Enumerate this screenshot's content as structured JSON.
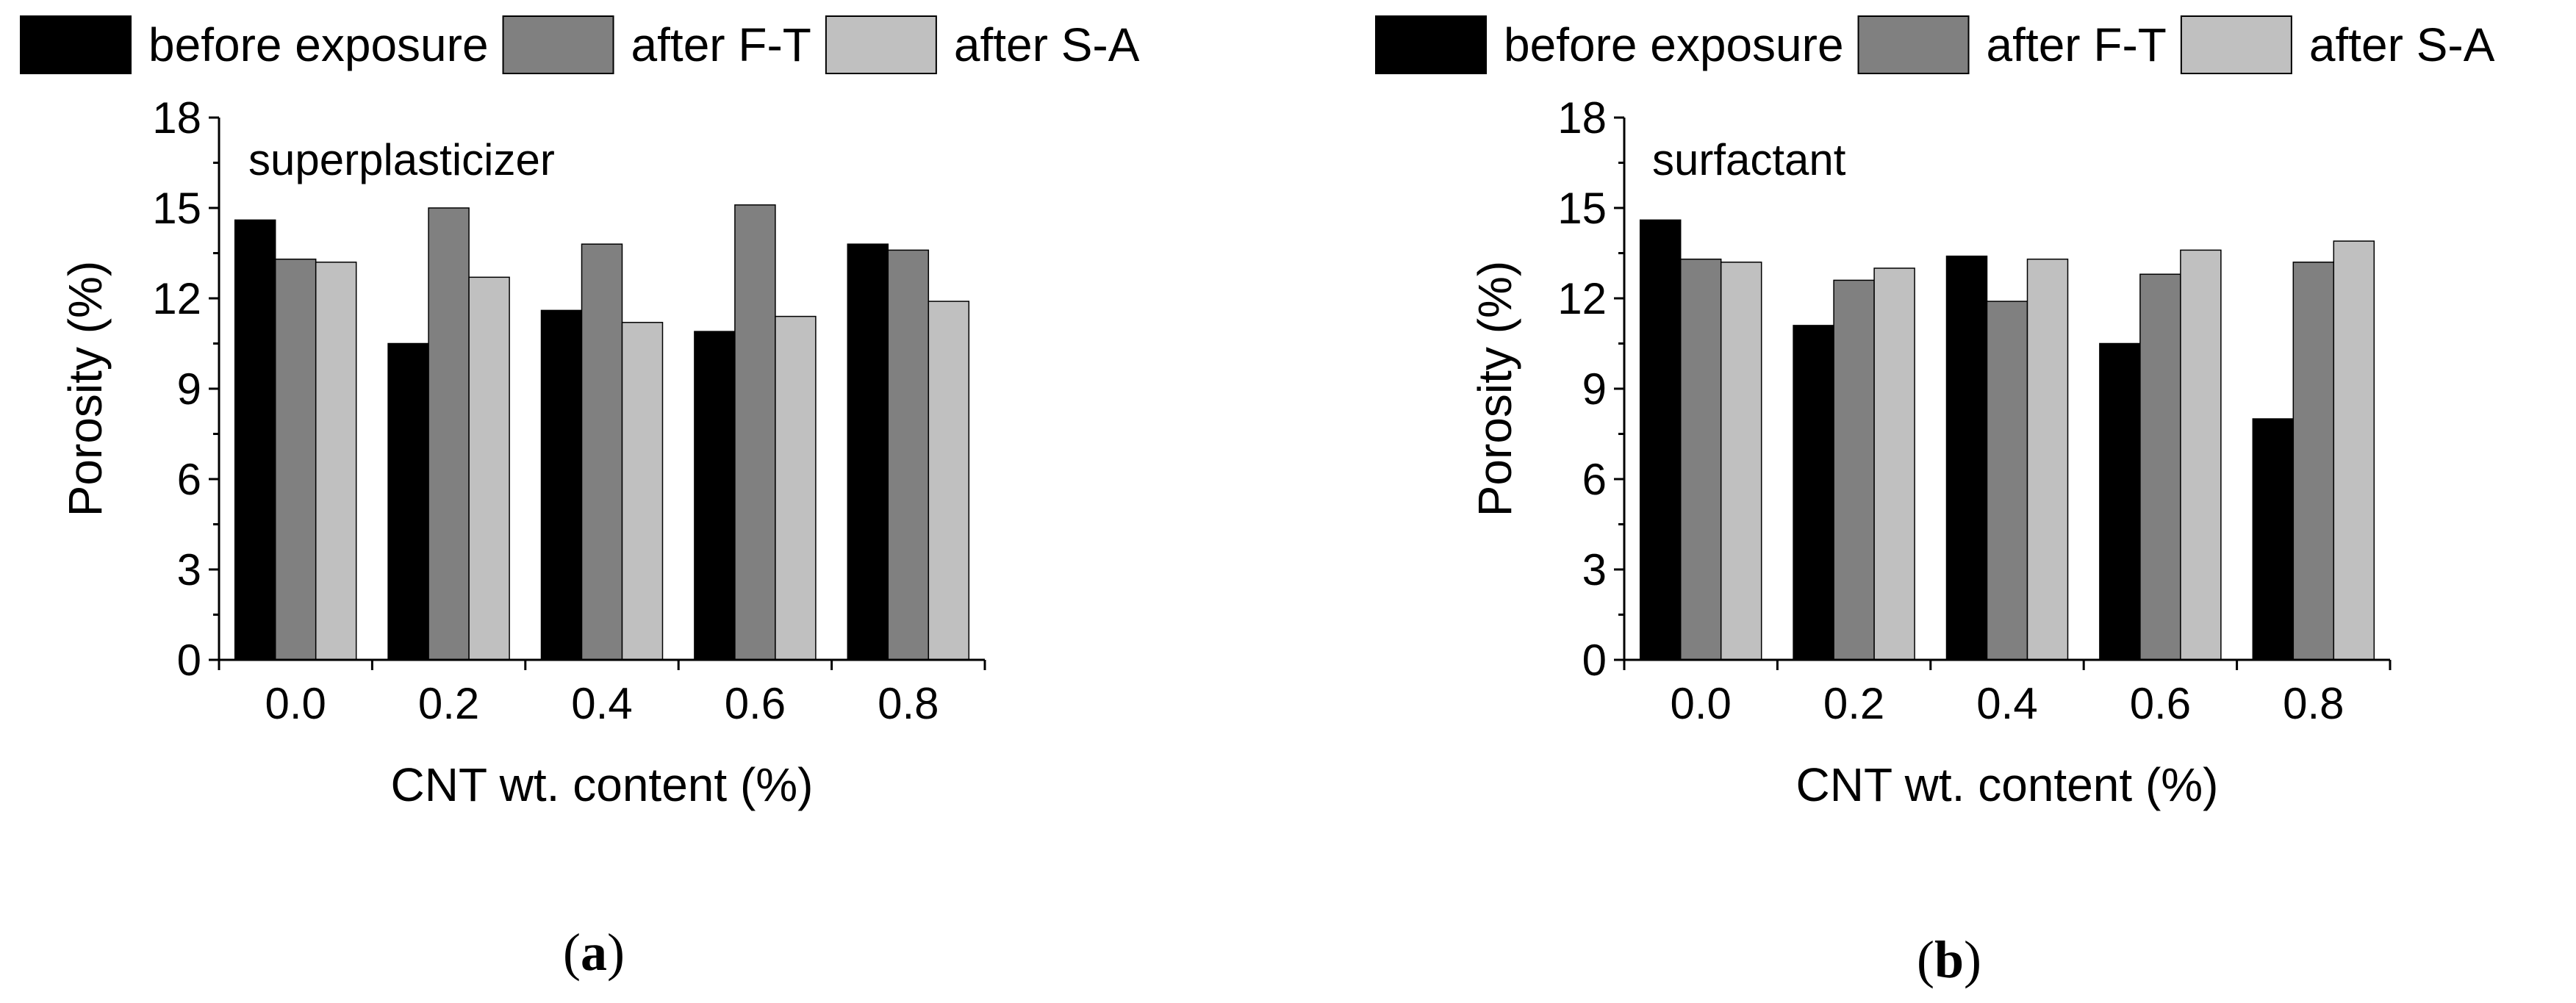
{
  "chart_data": [
    {
      "type": "bar",
      "panel_label": "a",
      "annotation": "superplasticizer",
      "xlabel": "CNT wt. content (%)",
      "ylabel": "Porosity (%)",
      "categories": [
        "0.0",
        "0.2",
        "0.4",
        "0.6",
        "0.8"
      ],
      "ylim": [
        0,
        18
      ],
      "yticks": [
        "0",
        "3",
        "6",
        "9",
        "12",
        "15",
        "18"
      ],
      "legend_position": "top",
      "grid": false,
      "series": [
        {
          "name": "before exposure",
          "color": "#000000",
          "values": [
            14.6,
            10.5,
            11.6,
            10.9,
            13.8
          ]
        },
        {
          "name": "after F-T",
          "color": "#808080",
          "values": [
            13.3,
            15.0,
            13.8,
            15.1,
            13.6
          ]
        },
        {
          "name": "after S-A",
          "color": "#c0c0c0",
          "values": [
            13.2,
            12.7,
            11.2,
            11.4,
            11.9
          ]
        }
      ]
    },
    {
      "type": "bar",
      "panel_label": "b",
      "annotation": "surfactant",
      "xlabel": "CNT wt. content (%)",
      "ylabel": "Porosity (%)",
      "categories": [
        "0.0",
        "0.2",
        "0.4",
        "0.6",
        "0.8"
      ],
      "ylim": [
        0,
        18
      ],
      "yticks": [
        "0",
        "3",
        "6",
        "9",
        "12",
        "15",
        "18"
      ],
      "legend_position": "top",
      "grid": false,
      "series": [
        {
          "name": "before exposure",
          "color": "#000000",
          "values": [
            14.6,
            11.1,
            13.4,
            10.5,
            8.0
          ]
        },
        {
          "name": "after F-T",
          "color": "#808080",
          "values": [
            13.3,
            12.6,
            11.9,
            12.8,
            13.2
          ]
        },
        {
          "name": "after S-A",
          "color": "#c0c0c0",
          "values": [
            13.2,
            13.0,
            13.3,
            13.6,
            13.9
          ]
        }
      ]
    }
  ]
}
